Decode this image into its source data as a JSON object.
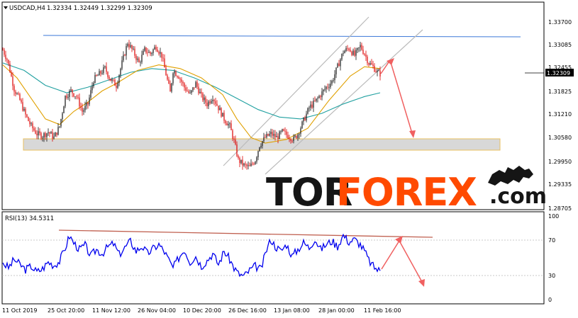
{
  "price_panel": {
    "symbol_label": "USDCAD,H4",
    "ohlc_label": "1.32334 1.32449 1.32299 1.32309",
    "current_price": "1.32309",
    "y_tick_labels": [
      "1.33700",
      "1.33085",
      "1.32455",
      "1.31825",
      "1.31210",
      "1.30580",
      "1.29950",
      "1.29335",
      "1.28705"
    ]
  },
  "rsi_panel": {
    "label": "RSI(13) 34.5311",
    "y_tick_labels": [
      "100",
      "70",
      "30",
      "0"
    ]
  },
  "time_axis": {
    "labels": [
      "11 Oct 2019",
      "25 Oct 20:00",
      "11 Nov 12:00",
      "26 Nov 04:00",
      "10 Dec 20:00",
      "26 Dec 16:00",
      "13 Jan 08:00",
      "28 Jan 00:00",
      "11 Feb 16:00"
    ]
  },
  "watermark": {
    "part1": "TOR",
    "part2": "FOREX",
    "part3": ".com"
  },
  "colors": {
    "candle_up": "#111111",
    "candle_down": "#dd0000",
    "ma_fast": "#e0a000",
    "ma_slow": "#20a0a0",
    "resistance_line": "#3c78d8",
    "channel_lines": "#bbbbbb",
    "support_zone_fill": "#d8d8d8",
    "support_zone_border": "#e8c060",
    "forecast_arrows": "#f06060",
    "rsi_line": "#0000ee",
    "rsi_trendline": "#c06050",
    "watermark_dark": "#151515",
    "watermark_accent": "#ff4a00"
  },
  "chart_data": [
    {
      "type": "candlestick",
      "title": "USDCAD,H4",
      "ylim": [
        1.28705,
        1.34
      ],
      "y_ticks": [
        1.337,
        1.33085,
        1.32455,
        1.31825,
        1.3121,
        1.3058,
        1.2995,
        1.29335,
        1.28705
      ],
      "x_tick_labels": [
        "11 Oct 2019",
        "25 Oct 20:00",
        "11 Nov 12:00",
        "26 Nov 04:00",
        "10 Dec 20:00",
        "26 Dec 16:00",
        "13 Jan 08:00",
        "28 Jan 00:00",
        "11 Feb 16:00"
      ],
      "close_path": [
        {
          "t": 0,
          "v": 1.3295
        },
        {
          "t": 3,
          "v": 1.327
        },
        {
          "t": 5,
          "v": 1.324
        },
        {
          "t": 8,
          "v": 1.319
        },
        {
          "t": 12,
          "v": 1.316
        },
        {
          "t": 16,
          "v": 1.312
        },
        {
          "t": 20,
          "v": 1.309
        },
        {
          "t": 24,
          "v": 1.307
        },
        {
          "t": 28,
          "v": 1.3065
        },
        {
          "t": 32,
          "v": 1.3075
        },
        {
          "t": 36,
          "v": 1.306
        },
        {
          "t": 40,
          "v": 1.309
        },
        {
          "t": 44,
          "v": 1.317
        },
        {
          "t": 48,
          "v": 1.3185
        },
        {
          "t": 52,
          "v": 1.317
        },
        {
          "t": 56,
          "v": 1.313
        },
        {
          "t": 60,
          "v": 1.315
        },
        {
          "t": 64,
          "v": 1.3215
        },
        {
          "t": 68,
          "v": 1.323
        },
        {
          "t": 72,
          "v": 1.3245
        },
        {
          "t": 76,
          "v": 1.3215
        },
        {
          "t": 80,
          "v": 1.32
        },
        {
          "t": 84,
          "v": 1.326
        },
        {
          "t": 88,
          "v": 1.3315
        },
        {
          "t": 92,
          "v": 1.329
        },
        {
          "t": 96,
          "v": 1.326
        },
        {
          "t": 100,
          "v": 1.3295
        },
        {
          "t": 104,
          "v": 1.3285
        },
        {
          "t": 108,
          "v": 1.3305
        },
        {
          "t": 112,
          "v": 1.328
        },
        {
          "t": 115,
          "v": 1.323
        },
        {
          "t": 118,
          "v": 1.318
        },
        {
          "t": 120,
          "v": 1.324
        },
        {
          "t": 124,
          "v": 1.3225
        },
        {
          "t": 128,
          "v": 1.3195
        },
        {
          "t": 132,
          "v": 1.3175
        },
        {
          "t": 136,
          "v": 1.3205
        },
        {
          "t": 140,
          "v": 1.317
        },
        {
          "t": 144,
          "v": 1.315
        },
        {
          "t": 148,
          "v": 1.317
        },
        {
          "t": 152,
          "v": 1.314
        },
        {
          "t": 156,
          "v": 1.311
        },
        {
          "t": 160,
          "v": 1.309
        },
        {
          "t": 163,
          "v": 1.305
        },
        {
          "t": 166,
          "v": 1.3
        },
        {
          "t": 170,
          "v": 1.2985
        },
        {
          "t": 174,
          "v": 1.298
        },
        {
          "t": 178,
          "v": 1.3
        },
        {
          "t": 181,
          "v": 1.304
        },
        {
          "t": 185,
          "v": 1.306
        },
        {
          "t": 189,
          "v": 1.307
        },
        {
          "t": 193,
          "v": 1.306
        },
        {
          "t": 197,
          "v": 1.3075
        },
        {
          "t": 201,
          "v": 1.3065
        },
        {
          "t": 205,
          "v": 1.3055
        },
        {
          "t": 208,
          "v": 1.307
        },
        {
          "t": 212,
          "v": 1.3105
        },
        {
          "t": 216,
          "v": 1.314
        },
        {
          "t": 220,
          "v": 1.3155
        },
        {
          "t": 224,
          "v": 1.3175
        },
        {
          "t": 228,
          "v": 1.3195
        },
        {
          "t": 232,
          "v": 1.321
        },
        {
          "t": 236,
          "v": 1.325
        },
        {
          "t": 240,
          "v": 1.329
        },
        {
          "t": 244,
          "v": 1.33
        },
        {
          "t": 248,
          "v": 1.328
        },
        {
          "t": 252,
          "v": 1.3305
        },
        {
          "t": 255,
          "v": 1.3285
        },
        {
          "t": 258,
          "v": 1.326
        },
        {
          "t": 261,
          "v": 1.325
        },
        {
          "t": 264,
          "v": 1.3235
        },
        {
          "t": 266,
          "v": 1.3231
        }
      ],
      "moving_average_fast": [
        {
          "t": 0,
          "v": 1.3255
        },
        {
          "t": 10,
          "v": 1.322
        },
        {
          "t": 20,
          "v": 1.3165
        },
        {
          "t": 30,
          "v": 1.311
        },
        {
          "t": 40,
          "v": 1.3095
        },
        {
          "t": 50,
          "v": 1.313
        },
        {
          "t": 60,
          "v": 1.3155
        },
        {
          "t": 70,
          "v": 1.3185
        },
        {
          "t": 80,
          "v": 1.3205
        },
        {
          "t": 95,
          "v": 1.324
        },
        {
          "t": 110,
          "v": 1.3255
        },
        {
          "t": 125,
          "v": 1.3245
        },
        {
          "t": 140,
          "v": 1.322
        },
        {
          "t": 155,
          "v": 1.3175
        },
        {
          "t": 165,
          "v": 1.311
        },
        {
          "t": 175,
          "v": 1.306
        },
        {
          "t": 185,
          "v": 1.3045
        },
        {
          "t": 200,
          "v": 1.3055
        },
        {
          "t": 215,
          "v": 1.3085
        },
        {
          "t": 230,
          "v": 1.316
        },
        {
          "t": 245,
          "v": 1.3225
        },
        {
          "t": 255,
          "v": 1.325
        },
        {
          "t": 266,
          "v": 1.3245
        }
      ],
      "moving_average_slow": [
        {
          "t": 0,
          "v": 1.326
        },
        {
          "t": 15,
          "v": 1.324
        },
        {
          "t": 30,
          "v": 1.32
        },
        {
          "t": 45,
          "v": 1.318
        },
        {
          "t": 60,
          "v": 1.3195
        },
        {
          "t": 75,
          "v": 1.3215
        },
        {
          "t": 90,
          "v": 1.3235
        },
        {
          "t": 105,
          "v": 1.3245
        },
        {
          "t": 120,
          "v": 1.324
        },
        {
          "t": 135,
          "v": 1.322
        },
        {
          "t": 150,
          "v": 1.3195
        },
        {
          "t": 165,
          "v": 1.3165
        },
        {
          "t": 180,
          "v": 1.3135
        },
        {
          "t": 195,
          "v": 1.3115
        },
        {
          "t": 210,
          "v": 1.311
        },
        {
          "t": 225,
          "v": 1.3125
        },
        {
          "t": 240,
          "v": 1.315
        },
        {
          "t": 255,
          "v": 1.317
        },
        {
          "t": 266,
          "v": 1.318
        }
      ],
      "resistance_level": 1.3338,
      "support_zone": [
        1.304,
        1.306
      ]
    },
    {
      "type": "line",
      "title": "RSI(13) 34.5311",
      "ylim": [
        0,
        100
      ],
      "y_ticks": [
        100,
        70,
        30,
        0
      ],
      "series": [
        {
          "name": "RSI(13)",
          "points": [
            {
              "t": 0,
              "v": 44
            },
            {
              "t": 4,
              "v": 38
            },
            {
              "t": 8,
              "v": 48
            },
            {
              "t": 12,
              "v": 42
            },
            {
              "t": 16,
              "v": 36
            },
            {
              "t": 20,
              "v": 40
            },
            {
              "t": 24,
              "v": 33
            },
            {
              "t": 28,
              "v": 37
            },
            {
              "t": 32,
              "v": 45
            },
            {
              "t": 36,
              "v": 41
            },
            {
              "t": 40,
              "v": 46
            },
            {
              "t": 44,
              "v": 62
            },
            {
              "t": 47,
              "v": 76
            },
            {
              "t": 50,
              "v": 68
            },
            {
              "t": 54,
              "v": 60
            },
            {
              "t": 58,
              "v": 65
            },
            {
              "t": 62,
              "v": 52
            },
            {
              "t": 66,
              "v": 60
            },
            {
              "t": 70,
              "v": 55
            },
            {
              "t": 74,
              "v": 63
            },
            {
              "t": 78,
              "v": 67
            },
            {
              "t": 82,
              "v": 54
            },
            {
              "t": 86,
              "v": 62
            },
            {
              "t": 90,
              "v": 70
            },
            {
              "t": 94,
              "v": 58
            },
            {
              "t": 98,
              "v": 64
            },
            {
              "t": 102,
              "v": 55
            },
            {
              "t": 106,
              "v": 61
            },
            {
              "t": 110,
              "v": 66
            },
            {
              "t": 114,
              "v": 57
            },
            {
              "t": 118,
              "v": 44
            },
            {
              "t": 120,
              "v": 38
            },
            {
              "t": 124,
              "v": 50
            },
            {
              "t": 128,
              "v": 60
            },
            {
              "t": 132,
              "v": 45
            },
            {
              "t": 136,
              "v": 52
            },
            {
              "t": 140,
              "v": 40
            },
            {
              "t": 144,
              "v": 47
            },
            {
              "t": 148,
              "v": 55
            },
            {
              "t": 152,
              "v": 42
            },
            {
              "t": 156,
              "v": 58
            },
            {
              "t": 160,
              "v": 48
            },
            {
              "t": 163,
              "v": 38
            },
            {
              "t": 166,
              "v": 31
            },
            {
              "t": 170,
              "v": 28
            },
            {
              "t": 174,
              "v": 35
            },
            {
              "t": 178,
              "v": 40
            },
            {
              "t": 182,
              "v": 36
            },
            {
              "t": 186,
              "v": 60
            },
            {
              "t": 189,
              "v": 72
            },
            {
              "t": 192,
              "v": 64
            },
            {
              "t": 196,
              "v": 58
            },
            {
              "t": 200,
              "v": 66
            },
            {
              "t": 204,
              "v": 52
            },
            {
              "t": 208,
              "v": 60
            },
            {
              "t": 212,
              "v": 68
            },
            {
              "t": 216,
              "v": 62
            },
            {
              "t": 220,
              "v": 73
            },
            {
              "t": 224,
              "v": 60
            },
            {
              "t": 228,
              "v": 66
            },
            {
              "t": 232,
              "v": 70
            },
            {
              "t": 236,
              "v": 64
            },
            {
              "t": 240,
              "v": 77
            },
            {
              "t": 244,
              "v": 69
            },
            {
              "t": 248,
              "v": 72
            },
            {
              "t": 252,
              "v": 66
            },
            {
              "t": 255,
              "v": 58
            },
            {
              "t": 258,
              "v": 47
            },
            {
              "t": 261,
              "v": 40
            },
            {
              "t": 264,
              "v": 36
            },
            {
              "t": 266,
              "v": 34.5
            }
          ]
        }
      ]
    }
  ]
}
